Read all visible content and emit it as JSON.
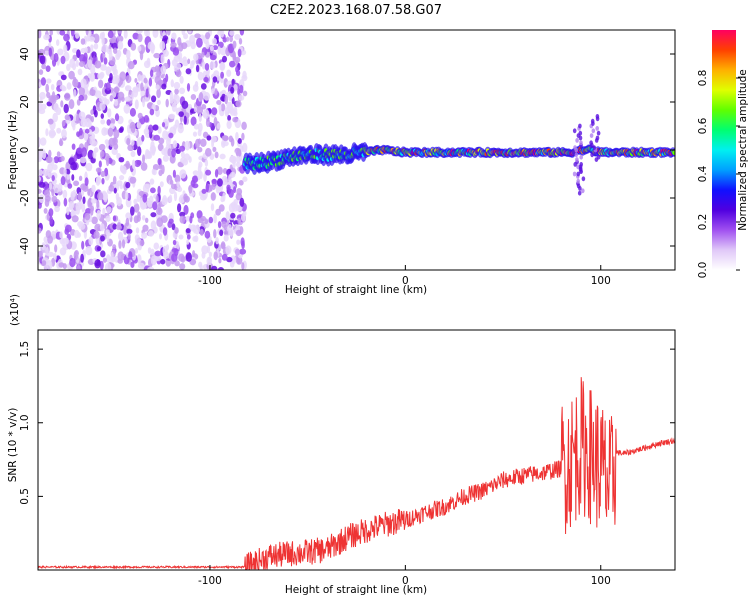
{
  "title": "C2E2.2023.168.07.58.G07",
  "chart_data": [
    {
      "type": "heatmap",
      "xlabel": "Height of straight line (km)",
      "ylabel": "Frequency (Hz)",
      "xlim": [
        -188,
        138
      ],
      "ylim": [
        -50,
        50
      ],
      "xticks": [
        -100,
        0,
        100
      ],
      "yticks": [
        -40,
        -20,
        0,
        20,
        40
      ],
      "colorbar": {
        "label": "Normalized spectral amplitude",
        "range": [
          0,
          1
        ],
        "ticks": [
          0.0,
          0.2,
          0.4,
          0.6,
          0.8
        ],
        "colors": [
          "#ffffff",
          "#e0c8f8",
          "#a050f0",
          "#5000e0",
          "#1010ff",
          "#00a0ff",
          "#00f0f0",
          "#00ff70",
          "#60ff00",
          "#e0ff00",
          "#ffb000",
          "#ff4000",
          "#ff0060"
        ]
      },
      "noise_region_x": [
        -188,
        -82
      ],
      "signal_ridge": {
        "x": [
          -82,
          -70,
          -60,
          -50,
          -40,
          -30,
          -20,
          -12,
          0,
          20,
          40,
          60,
          75,
          85,
          90,
          95,
          100,
          110,
          138
        ],
        "frequency": [
          -6,
          -5,
          -3,
          -2,
          -2,
          -2,
          -1,
          0,
          -1,
          -1,
          -1,
          -1,
          -1,
          -1,
          0,
          0,
          -1,
          -1,
          -1
        ]
      }
    },
    {
      "type": "line",
      "xlabel": "Height of straight line (km)",
      "ylabel": "SNR (10 * v/v)",
      "y_multiplier": "(x10⁴)",
      "xlim": [
        -188,
        138
      ],
      "ylim": [
        0,
        1.63
      ],
      "xticks": [
        -100,
        0,
        100
      ],
      "yticks": [
        0.5,
        1.0,
        1.5
      ],
      "series": [
        {
          "color": "#ee3333",
          "x": [
            -188,
            -120,
            -82,
            -70,
            -60,
            -50,
            -40,
            -30,
            -20,
            -10,
            0,
            10,
            20,
            30,
            40,
            50,
            60,
            70,
            80,
            85,
            90,
            95,
            100,
            105,
            108,
            112,
            120,
            130,
            138
          ],
          "y": [
            0.02,
            0.02,
            0.02,
            0.09,
            0.11,
            0.12,
            0.14,
            0.22,
            0.27,
            0.31,
            0.34,
            0.39,
            0.43,
            0.5,
            0.54,
            0.61,
            0.64,
            0.66,
            0.69,
            0.75,
            0.85,
            0.78,
            0.7,
            0.55,
            0.8,
            0.79,
            0.82,
            0.86,
            0.88
          ]
        }
      ]
    }
  ]
}
